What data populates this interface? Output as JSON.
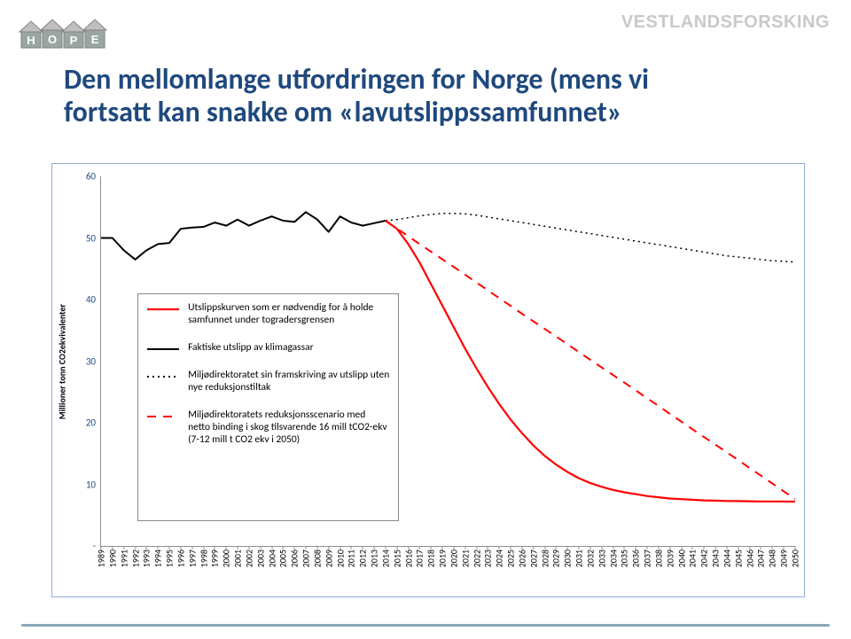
{
  "logo": {
    "letters": [
      "H",
      "O",
      "P",
      "E"
    ],
    "letter_bg": "#9aa7a1",
    "roof_color": "#bfbfbf"
  },
  "brand_right": "VESTLANDSFORSKING",
  "title_line1": "Den mellomlange utfordringen for Norge (mens vi",
  "title_line2": "fortsatt kan snakke om «lavutslippssamfunnet»",
  "chart": {
    "type": "line",
    "background": "#ffffff",
    "border_color": "#8eb0db",
    "axis_color": "#909090",
    "ylabel": "Millioner tonn CO2ekvivalenter",
    "ylabel_fontsize": 10,
    "ylabel_weight": "bold",
    "ylim": [
      0,
      60
    ],
    "yticks": [
      0,
      10,
      20,
      30,
      40,
      50,
      60
    ],
    "ytick_labels": [
      "-",
      "10",
      "20",
      "30",
      "40",
      "50",
      "60"
    ],
    "ytick_fontsize": 11,
    "ytick_color": "#1f497d",
    "xlim": [
      1989,
      2050
    ],
    "xticks_all_years": true,
    "xtick_fontsize": 10,
    "grid": false,
    "series": [
      {
        "id": "actual",
        "label": "Faktiske utslipp av klimagassar",
        "color": "#000000",
        "width": 2.0,
        "dash": "solid",
        "data": [
          [
            1989,
            50.0
          ],
          [
            1990,
            50.0
          ],
          [
            1991,
            48.0
          ],
          [
            1992,
            46.5
          ],
          [
            1993,
            48.0
          ],
          [
            1994,
            49.0
          ],
          [
            1995,
            49.2
          ],
          [
            1996,
            51.5
          ],
          [
            1997,
            51.7
          ],
          [
            1998,
            51.8
          ],
          [
            1999,
            52.5
          ],
          [
            2000,
            52.0
          ],
          [
            2001,
            53.0
          ],
          [
            2002,
            52.0
          ],
          [
            2003,
            52.8
          ],
          [
            2004,
            53.5
          ],
          [
            2005,
            52.8
          ],
          [
            2006,
            52.6
          ],
          [
            2007,
            54.2
          ],
          [
            2008,
            53.0
          ],
          [
            2009,
            51.0
          ],
          [
            2010,
            53.5
          ],
          [
            2011,
            52.5
          ],
          [
            2012,
            52.0
          ],
          [
            2013,
            52.4
          ],
          [
            2014,
            52.8
          ]
        ]
      },
      {
        "id": "two_degree",
        "label": "Utslippskurven som er nødvendig for å holde samfunnet under togradersgrensen",
        "color": "#ff0000",
        "width": 2.2,
        "dash": "solid",
        "data": [
          [
            2014,
            52.8
          ],
          [
            2015,
            51.5
          ],
          [
            2016,
            49.0
          ],
          [
            2017,
            46.0
          ],
          [
            2018,
            42.5
          ],
          [
            2019,
            39.0
          ],
          [
            2020,
            35.5
          ],
          [
            2021,
            32.0
          ],
          [
            2022,
            28.8
          ],
          [
            2023,
            25.8
          ],
          [
            2024,
            23.0
          ],
          [
            2025,
            20.5
          ],
          [
            2026,
            18.3
          ],
          [
            2027,
            16.3
          ],
          [
            2028,
            14.6
          ],
          [
            2029,
            13.2
          ],
          [
            2030,
            12.0
          ],
          [
            2031,
            11.0
          ],
          [
            2032,
            10.2
          ],
          [
            2033,
            9.6
          ],
          [
            2034,
            9.1
          ],
          [
            2035,
            8.7
          ],
          [
            2036,
            8.4
          ],
          [
            2037,
            8.1
          ],
          [
            2038,
            7.9
          ],
          [
            2039,
            7.7
          ],
          [
            2040,
            7.6
          ],
          [
            2041,
            7.5
          ],
          [
            2042,
            7.4
          ],
          [
            2043,
            7.35
          ],
          [
            2044,
            7.3
          ],
          [
            2045,
            7.28
          ],
          [
            2046,
            7.25
          ],
          [
            2047,
            7.23
          ],
          [
            2048,
            7.22
          ],
          [
            2049,
            7.21
          ],
          [
            2050,
            7.2
          ]
        ]
      },
      {
        "id": "projection",
        "label": "Miljødirektoratet sin framskriving av utslipp uten nye reduksjonstiltak",
        "color": "#000000",
        "width": 1.5,
        "dash": "dotted",
        "data": [
          [
            2014,
            52.8
          ],
          [
            2015,
            53.0
          ],
          [
            2016,
            53.3
          ],
          [
            2017,
            53.6
          ],
          [
            2018,
            53.8
          ],
          [
            2019,
            54.0
          ],
          [
            2020,
            54.0
          ],
          [
            2021,
            53.9
          ],
          [
            2022,
            53.7
          ],
          [
            2023,
            53.4
          ],
          [
            2024,
            53.1
          ],
          [
            2025,
            52.8
          ],
          [
            2026,
            52.5
          ],
          [
            2027,
            52.2
          ],
          [
            2028,
            51.9
          ],
          [
            2029,
            51.6
          ],
          [
            2030,
            51.3
          ],
          [
            2031,
            51.0
          ],
          [
            2032,
            50.7
          ],
          [
            2033,
            50.4
          ],
          [
            2034,
            50.1
          ],
          [
            2035,
            49.8
          ],
          [
            2036,
            49.5
          ],
          [
            2037,
            49.2
          ],
          [
            2038,
            48.9
          ],
          [
            2039,
            48.6
          ],
          [
            2040,
            48.3
          ],
          [
            2041,
            48.0
          ],
          [
            2042,
            47.7
          ],
          [
            2043,
            47.4
          ],
          [
            2044,
            47.1
          ],
          [
            2045,
            46.9
          ],
          [
            2046,
            46.7
          ],
          [
            2047,
            46.5
          ],
          [
            2048,
            46.3
          ],
          [
            2049,
            46.2
          ],
          [
            2050,
            46.1
          ]
        ]
      },
      {
        "id": "reduction_scenario",
        "label": "Miljødirektoratets reduksjonsscenario med netto binding i skog tilsvarende 16 mill tCO2-ekv (7-12 mill t CO2 ekv i 2050)",
        "color": "#ff0000",
        "width": 2.0,
        "dash": "dashed",
        "data": [
          [
            2014,
            52.8
          ],
          [
            2017,
            49.0
          ],
          [
            2020,
            45.3
          ],
          [
            2023,
            41.5
          ],
          [
            2026,
            37.7
          ],
          [
            2029,
            34.0
          ],
          [
            2032,
            30.2
          ],
          [
            2035,
            26.5
          ],
          [
            2038,
            22.7
          ],
          [
            2041,
            18.9
          ],
          [
            2044,
            15.2
          ],
          [
            2047,
            11.4
          ],
          [
            2050,
            7.6
          ]
        ]
      }
    ],
    "legend": {
      "x_year": 1992.2,
      "y_value_top": 41,
      "width_years": 23,
      "height_values": 37,
      "border_color": "#888888",
      "fontsize": 11.5,
      "items_order": [
        "two_degree",
        "actual",
        "projection",
        "reduction_scenario"
      ]
    }
  },
  "colors": {
    "title": "#1f497d",
    "footer_rule": "#88a8b8"
  }
}
